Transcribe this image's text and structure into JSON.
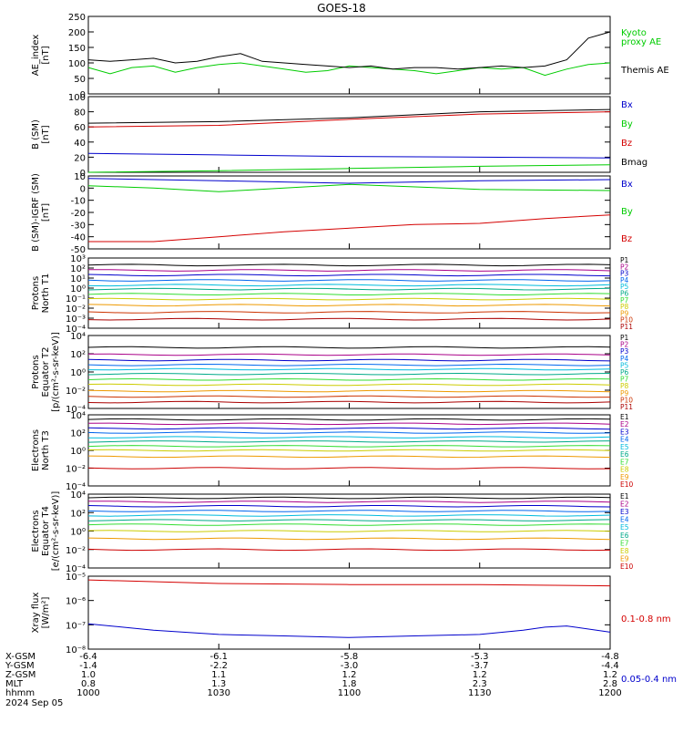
{
  "title": "GOES-18",
  "colors": {
    "black": "#000000",
    "red": "#d40000",
    "green": "#00cc00",
    "blue": "#0000cc",
    "navy": "#000099",
    "cyan": "#00bbdd",
    "teal": "#00aaaa",
    "ltgreen": "#33dd33",
    "yellow": "#cccc00",
    "orange": "#ee9900",
    "brown": "#cc7700",
    "dkred": "#aa0000",
    "maroon": "#880000"
  },
  "chart_data": [
    {
      "type": "line",
      "ylabel": [
        "AE_index",
        "[nT]"
      ],
      "yticks": [
        "250",
        "200",
        "150",
        "100",
        "50",
        "0"
      ],
      "ylim": [
        0,
        250
      ],
      "legend": [
        {
          "name": "Kyoto",
          "color": "#00cc00"
        },
        {
          "name": "proxy AE",
          "color": "#00cc00"
        },
        {
          "name": "Themis AE",
          "color": "#000000"
        }
      ],
      "series": [
        {
          "name": "Kyoto proxy AE",
          "color": "#00cc00",
          "x": [
            1000,
            1005,
            1010,
            1015,
            1020,
            1025,
            1030,
            1035,
            1040,
            1045,
            1050,
            1055,
            1100,
            1105,
            1110,
            1115,
            1120,
            1125,
            1130,
            1135,
            1140,
            1145,
            1150,
            1155,
            1200
          ],
          "values": [
            85,
            65,
            85,
            90,
            70,
            85,
            95,
            100,
            90,
            80,
            70,
            75,
            90,
            85,
            80,
            75,
            65,
            75,
            85,
            80,
            85,
            60,
            80,
            95,
            100
          ]
        },
        {
          "name": "Themis AE",
          "color": "#000000",
          "x": [
            1000,
            1005,
            1010,
            1015,
            1020,
            1025,
            1030,
            1035,
            1040,
            1045,
            1050,
            1055,
            1100,
            1105,
            1110,
            1115,
            1120,
            1125,
            1130,
            1135,
            1140,
            1145,
            1150,
            1155,
            1200
          ],
          "values": [
            110,
            105,
            110,
            115,
            100,
            105,
            120,
            130,
            105,
            100,
            95,
            90,
            85,
            90,
            80,
            85,
            85,
            80,
            85,
            90,
            85,
            90,
            110,
            180,
            200
          ]
        }
      ]
    },
    {
      "type": "line",
      "ylabel": [
        "B (SM)",
        "[nT]"
      ],
      "yticks": [
        "100",
        "80",
        "60",
        "40",
        "20",
        "0"
      ],
      "ylim": [
        0,
        100
      ],
      "legend": [
        {
          "name": "Bx",
          "color": "#0000cc"
        },
        {
          "name": "By",
          "color": "#00cc00"
        },
        {
          "name": "Bz",
          "color": "#d40000"
        },
        {
          "name": "Bmag",
          "color": "#000000"
        }
      ],
      "series": [
        {
          "name": "Bmag",
          "color": "#000000",
          "x": [
            1000,
            1030,
            1100,
            1130,
            1200
          ],
          "values": [
            65,
            67,
            72,
            80,
            83
          ]
        },
        {
          "name": "Bz",
          "color": "#d40000",
          "x": [
            1000,
            1030,
            1100,
            1130,
            1200
          ],
          "values": [
            60,
            62,
            70,
            77,
            80
          ]
        },
        {
          "name": "Bx",
          "color": "#0000cc",
          "x": [
            1000,
            1030,
            1100,
            1130,
            1200
          ],
          "values": [
            25,
            23,
            21,
            20,
            19
          ]
        },
        {
          "name": "By",
          "color": "#00cc00",
          "x": [
            1000,
            1030,
            1100,
            1130,
            1200
          ],
          "values": [
            0,
            2,
            5,
            8,
            10
          ]
        }
      ]
    },
    {
      "type": "line",
      "ylabel": [
        "B (SM)-IGRF (SM)",
        "[nT]"
      ],
      "yticks": [
        "10",
        "0",
        "-10",
        "-20",
        "-30",
        "-40",
        "-50"
      ],
      "ylim": [
        -50,
        10
      ],
      "legend": [
        {
          "name": "Bx",
          "color": "#0000cc"
        },
        {
          "name": "By",
          "color": "#00cc00"
        },
        {
          "name": "Bz",
          "color": "#d40000"
        }
      ],
      "series": [
        {
          "name": "Bx",
          "color": "#0000cc",
          "x": [
            1000,
            1030,
            1100,
            1130,
            1200
          ],
          "values": [
            8,
            6,
            4,
            6,
            7
          ]
        },
        {
          "name": "By",
          "color": "#00cc00",
          "x": [
            1000,
            1015,
            1030,
            1045,
            1100,
            1130,
            1200
          ],
          "values": [
            2,
            0,
            -3,
            0,
            3,
            -1,
            -2
          ]
        },
        {
          "name": "Bz",
          "color": "#d40000",
          "x": [
            1000,
            1015,
            1030,
            1045,
            1100,
            1115,
            1130,
            1145,
            1200
          ],
          "values": [
            -44,
            -44,
            -40,
            -36,
            -33,
            -30,
            -29,
            -25,
            -22
          ]
        }
      ]
    },
    {
      "type": "line",
      "ylabel": [
        "Protons",
        "North T1"
      ],
      "ylog": true,
      "yticks": [
        "10³",
        "10²",
        "10¹",
        "10⁰",
        "10⁻¹",
        "10⁻²",
        "10⁻³",
        "10⁻⁴"
      ],
      "ylim": [
        0.0001,
        1000
      ],
      "legend": [
        "P1",
        "P2",
        "P3",
        "P4",
        "P5",
        "P6",
        "P7",
        "P8",
        "P9",
        "P10",
        "P11"
      ],
      "series_colors": [
        "#000000",
        "#aa0088",
        "#0000cc",
        "#0066ee",
        "#00bbdd",
        "#00aa88",
        "#33dd33",
        "#cccc00",
        "#ee9900",
        "#cc3300",
        "#aa0000"
      ],
      "levels": [
        200,
        60,
        20,
        6,
        2,
        0.8,
        0.25,
        0.08,
        0.02,
        0.004,
        0.0008
      ]
    },
    {
      "type": "line",
      "ylabel": [
        "Protons",
        "Equator T2",
        "[p/(cm²-s-sr-keV)]"
      ],
      "ylog": true,
      "yticks": [
        "10⁴",
        "10²",
        "10⁰",
        "10⁻²",
        "10⁻⁴"
      ],
      "ylim": [
        0.0001,
        10000
      ],
      "legend": [
        "P1",
        "P2",
        "P3",
        "P4",
        "P5",
        "P6",
        "P7",
        "P8",
        "P9",
        "P10",
        "P11"
      ],
      "series_colors": [
        "#000000",
        "#aa0088",
        "#0000cc",
        "#0066ee",
        "#00bbdd",
        "#00aa88",
        "#33dd33",
        "#cccc00",
        "#ee9900",
        "#cc3300",
        "#aa0000"
      ],
      "levels": [
        500,
        80,
        20,
        6,
        2,
        0.6,
        0.15,
        0.04,
        0.008,
        0.002,
        0.0005
      ]
    },
    {
      "type": "line",
      "ylabel": [
        "Electrons",
        "North T3"
      ],
      "ylog": true,
      "yticks": [
        "10⁴",
        "10²",
        "10⁰",
        "10⁻²",
        "10⁻⁴"
      ],
      "ylim": [
        0.0001,
        10000
      ],
      "legend": [
        "E1",
        "E2",
        "E3",
        "E4",
        "E5",
        "E6",
        "E7",
        "E8",
        "E9",
        "E10"
      ],
      "series_colors": [
        "#000000",
        "#aa0088",
        "#0000cc",
        "#0066ee",
        "#00bbdd",
        "#00aa88",
        "#33dd33",
        "#cccc00",
        "#ee9900",
        "#cc0000"
      ],
      "levels": [
        3000,
        1000,
        300,
        100,
        30,
        10,
        3,
        1,
        0.2,
        0.01
      ]
    },
    {
      "type": "line",
      "ylabel": [
        "Electrons",
        "Equator T4",
        "[e/(cm²-s-sr-keV)]"
      ],
      "ylog": true,
      "yticks": [
        "10⁴",
        "10²",
        "10⁰",
        "10⁻²",
        "10⁻⁴"
      ],
      "ylim": [
        0.0001,
        10000
      ],
      "legend": [
        "E1",
        "E2",
        "E3",
        "E4",
        "E5",
        "E6",
        "E7",
        "E8",
        "E9",
        "E10"
      ],
      "series_colors": [
        "#000000",
        "#aa0088",
        "#0000cc",
        "#0066ee",
        "#00bbdd",
        "#00aa88",
        "#33dd33",
        "#cccc00",
        "#ee9900",
        "#cc0000"
      ],
      "levels": [
        4000,
        1500,
        500,
        150,
        50,
        15,
        5,
        1,
        0.15,
        0.01
      ]
    },
    {
      "type": "line",
      "ylabel": [
        "Xray flux",
        "[W/m²]"
      ],
      "ylog": true,
      "yticks": [
        "10⁻⁵",
        "10⁻⁶",
        "10⁻⁷",
        "10⁻⁸"
      ],
      "ylim": [
        1e-08,
        1e-05
      ],
      "legend": [
        {
          "name": "0.1-0.8 nm",
          "color": "#d40000"
        },
        {
          "name": "0.05-0.4 nm",
          "color": "#0000cc"
        }
      ],
      "series": [
        {
          "name": "0.1-0.8 nm",
          "color": "#d40000",
          "x": [
            1000,
            1030,
            1100,
            1130,
            1200
          ],
          "values": [
            7e-06,
            5e-06,
            4.5e-06,
            4.5e-06,
            4e-06
          ]
        },
        {
          "name": "0.05-0.4 nm",
          "color": "#0000cc",
          "x": [
            1000,
            1015,
            1030,
            1045,
            1100,
            1115,
            1130,
            1140,
            1145,
            1150,
            1200
          ],
          "values": [
            1.1e-07,
            6e-08,
            4e-08,
            3.5e-08,
            3e-08,
            3.5e-08,
            4e-08,
            6e-08,
            8e-08,
            9e-08,
            5e-08
          ]
        }
      ]
    }
  ],
  "xaxis": {
    "row_labels": [
      "X-GSM",
      "Y-GSM",
      "Z-GSM",
      "MLT",
      "hhmm"
    ],
    "columns": [
      {
        "values": [
          "-6.4",
          "-1.4",
          "1.0",
          "0.8",
          "1000"
        ]
      },
      {
        "values": [
          "-6.1",
          "-2.2",
          "1.1",
          "1.3",
          "1030"
        ]
      },
      {
        "values": [
          "-5.8",
          "-3.0",
          "1.2",
          "1.8",
          "1100"
        ]
      },
      {
        "values": [
          "-5.3",
          "-3.7",
          "1.2",
          "2.3",
          "1130"
        ]
      },
      {
        "values": [
          "-4.8",
          "-4.4",
          "1.2",
          "2.8",
          "1200"
        ]
      }
    ],
    "date": "2024 Sep 05"
  }
}
